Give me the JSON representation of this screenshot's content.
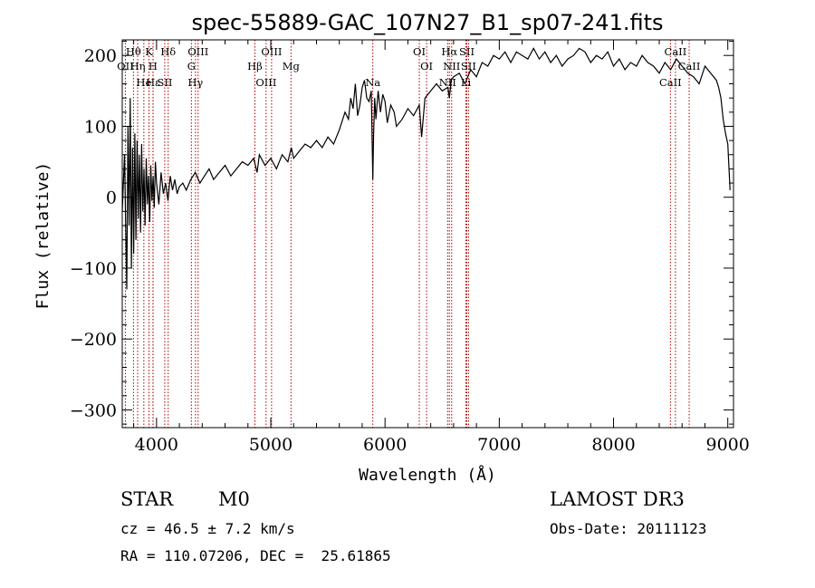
{
  "chart_data": {
    "type": "line",
    "title": "spec-55889-GAC_107N27_B1_sp07-241.fits",
    "xlabel": "Wavelength (Å)",
    "ylabel": "Flux (relative)",
    "xlim": [
      3700,
      9050
    ],
    "ylim": [
      -325,
      222
    ],
    "xticks": [
      4000,
      5000,
      6000,
      7000,
      8000,
      9000
    ],
    "yticks": [
      -300,
      -200,
      -100,
      0,
      100,
      200
    ],
    "series": [
      {
        "name": "flux",
        "x": [
          3700,
          3720,
          3740,
          3750,
          3760,
          3770,
          3780,
          3790,
          3800,
          3810,
          3820,
          3830,
          3840,
          3850,
          3860,
          3870,
          3880,
          3890,
          3900,
          3910,
          3920,
          3930,
          3940,
          3950,
          3960,
          3970,
          3980,
          3990,
          4000,
          4020,
          4040,
          4060,
          4080,
          4100,
          4120,
          4140,
          4160,
          4180,
          4200,
          4230,
          4260,
          4300,
          4340,
          4380,
          4420,
          4460,
          4500,
          4550,
          4600,
          4650,
          4700,
          4750,
          4800,
          4850,
          4880,
          4900,
          4950,
          5000,
          5050,
          5100,
          5150,
          5180,
          5200,
          5250,
          5300,
          5350,
          5400,
          5450,
          5500,
          5550,
          5600,
          5650,
          5680,
          5700,
          5720,
          5740,
          5760,
          5780,
          5800,
          5820,
          5840,
          5860,
          5880,
          5893,
          5900,
          5910,
          5920,
          5940,
          5960,
          5980,
          6000,
          6020,
          6050,
          6080,
          6100,
          6150,
          6200,
          6250,
          6300,
          6320,
          6350,
          6400,
          6450,
          6500,
          6550,
          6563,
          6580,
          6600,
          6650,
          6700,
          6750,
          6800,
          6850,
          6900,
          6950,
          7000,
          7050,
          7100,
          7150,
          7200,
          7250,
          7300,
          7350,
          7400,
          7450,
          7500,
          7550,
          7600,
          7650,
          7700,
          7750,
          7800,
          7850,
          7900,
          7950,
          8000,
          8050,
          8100,
          8150,
          8200,
          8250,
          8300,
          8350,
          8400,
          8450,
          8500,
          8550,
          8600,
          8650,
          8700,
          8750,
          8800,
          8850,
          8900,
          8920,
          8940,
          8960,
          8980,
          9000,
          9020
        ],
        "y": [
          -20,
          60,
          -130,
          100,
          -40,
          140,
          -100,
          70,
          -80,
          90,
          -60,
          80,
          -30,
          60,
          -50,
          75,
          -20,
          40,
          -40,
          55,
          -10,
          30,
          -35,
          45,
          -5,
          30,
          -15,
          50,
          20,
          -10,
          35,
          5,
          20,
          -5,
          30,
          10,
          25,
          5,
          15,
          20,
          10,
          25,
          35,
          20,
          30,
          40,
          25,
          35,
          45,
          30,
          40,
          50,
          45,
          55,
          35,
          60,
          45,
          55,
          40,
          60,
          50,
          70,
          55,
          65,
          75,
          70,
          80,
          70,
          85,
          75,
          95,
          120,
          110,
          140,
          125,
          160,
          115,
          130,
          155,
          165,
          140,
          135,
          150,
          25,
          90,
          140,
          110,
          150,
          120,
          145,
          135,
          105,
          130,
          120,
          100,
          110,
          125,
          115,
          130,
          85,
          140,
          150,
          160,
          150,
          155,
          140,
          165,
          170,
          175,
          160,
          180,
          170,
          190,
          185,
          200,
          195,
          205,
          190,
          205,
          200,
          195,
          210,
          195,
          205,
          190,
          200,
          185,
          195,
          200,
          210,
          205,
          190,
          200,
          195,
          205,
          185,
          195,
          180,
          190,
          185,
          200,
          190,
          185,
          175,
          190,
          180,
          195,
          185,
          175,
          170,
          160,
          185,
          175,
          165,
          155,
          140,
          110,
          90,
          75,
          10
        ]
      }
    ],
    "emission_lines": [
      {
        "label": "OII",
        "x": 3727,
        "row": 1
      },
      {
        "label": "Hθ",
        "x": 3798,
        "row": 0
      },
      {
        "label": "Hη",
        "x": 3835,
        "row": 1
      },
      {
        "label": "He",
        "x": 3889,
        "row": 2
      },
      {
        "label": "K",
        "x": 3934,
        "row": 0
      },
      {
        "label": "H",
        "x": 3969,
        "row": 1
      },
      {
        "label": "Hε",
        "x": 3970,
        "row": 2
      },
      {
        "label": "SII",
        "x": 4072,
        "row": 2
      },
      {
        "label": "Hδ",
        "x": 4102,
        "row": 0
      },
      {
        "label": "G",
        "x": 4305,
        "row": 1
      },
      {
        "label": "Hγ",
        "x": 4341,
        "row": 2
      },
      {
        "label": "OIII",
        "x": 4364,
        "row": 0
      },
      {
        "label": "Hβ",
        "x": 4861,
        "row": 1
      },
      {
        "label": "OIII",
        "x": 4959,
        "row": 2
      },
      {
        "label": "OIII",
        "x": 5007,
        "row": 0
      },
      {
        "label": "Mg",
        "x": 5177,
        "row": 1
      },
      {
        "label": "Na",
        "x": 5893,
        "row": 2
      },
      {
        "label": "OI",
        "x": 6300,
        "row": 0
      },
      {
        "label": "OI",
        "x": 6364,
        "row": 1
      },
      {
        "label": "NII",
        "x": 6548,
        "row": 2
      },
      {
        "label": "Hα",
        "x": 6563,
        "row": 0
      },
      {
        "label": "NII",
        "x": 6583,
        "row": 1
      },
      {
        "label": "Li",
        "x": 6708,
        "row": 2
      },
      {
        "label": "SII",
        "x": 6716,
        "row": 0
      },
      {
        "label": "SII",
        "x": 6731,
        "row": 1
      },
      {
        "label": "CaII",
        "x": 8498,
        "row": 2
      },
      {
        "label": "CaII",
        "x": 8542,
        "row": 0
      },
      {
        "label": "CaII",
        "x": 8662,
        "row": 1
      }
    ],
    "grid": false,
    "line_color": "#000000",
    "marker_color": "#b00000"
  },
  "info": {
    "class": "STAR",
    "subclass": "M0",
    "survey": "LAMOST DR3",
    "cz": "cz = 46.5 ± 7.2 km/s",
    "obs_date": "Obs-Date: 20111123",
    "coords": "RA = 110.07206, DEC =  25.61865"
  }
}
